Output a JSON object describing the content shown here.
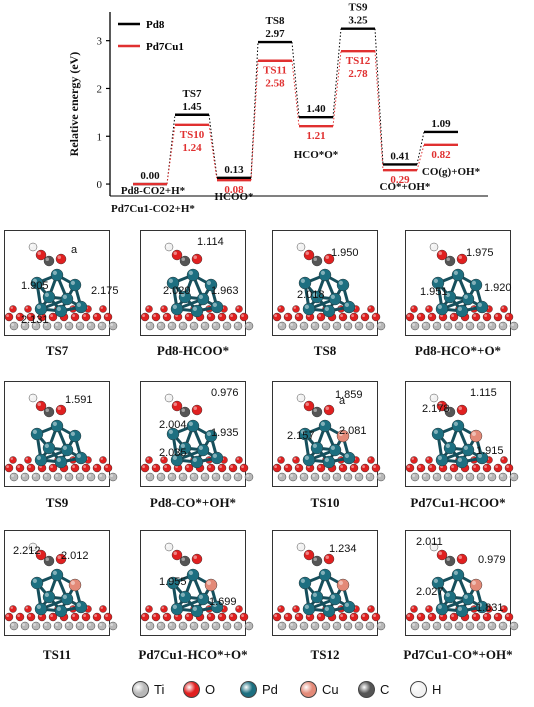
{
  "chart_data": {
    "type": "line",
    "ylabel": "Relative energy (eV)",
    "ylim": [
      -0.25,
      3.6
    ],
    "yticks": [
      0,
      1,
      2,
      3
    ],
    "series": [
      {
        "name": "Pd8",
        "color": "#000000",
        "values": [
          0.0,
          1.45,
          0.13,
          2.97,
          1.4,
          3.25,
          0.41,
          1.09
        ],
        "labels": [
          "0.00",
          "1.45",
          "0.13",
          "2.97",
          "1.40",
          "3.25",
          "0.41",
          "1.09"
        ]
      },
      {
        "name": "Pd7Cu1",
        "color": "#e03030",
        "values": [
          0.0,
          1.24,
          0.08,
          2.58,
          1.21,
          2.78,
          0.29,
          0.82
        ],
        "labels": [
          "",
          "1.24",
          "0.08",
          "2.58",
          "1.21",
          "2.78",
          "0.29",
          "0.82"
        ]
      }
    ],
    "ts_labels": [
      {
        "index": 1,
        "black": "TS7",
        "red": "TS10"
      },
      {
        "index": 3,
        "black": "TS8",
        "red": "TS11"
      },
      {
        "index": 5,
        "black": "TS9",
        "red": "TS12"
      }
    ],
    "state_labels": [
      {
        "index": 0,
        "lines": [
          "Pd8-CO2+H*",
          "Pd7Cu1-CO2+H*"
        ]
      },
      {
        "index": 2,
        "lines": [
          "HCOO*"
        ]
      },
      {
        "index": 4,
        "lines": [
          "HCO*O*"
        ]
      },
      {
        "index": 6,
        "lines": [
          "CO*+OH*"
        ]
      },
      {
        "index": 7,
        "lines": [
          "CO(g)+OH*"
        ]
      }
    ]
  },
  "panels": [
    {
      "caption": "TS7",
      "distances": [
        "1.905",
        "2.131",
        "2.175"
      ],
      "extra": "a"
    },
    {
      "caption": "Pd8-HCOO*",
      "distances": [
        "1.114",
        "2.020",
        "1.963"
      ]
    },
    {
      "caption": "TS8",
      "distances": [
        "1.950",
        "2.018"
      ]
    },
    {
      "caption": "Pd8-HCO*+O*",
      "distances": [
        "1.975",
        "1.951",
        "1.920"
      ]
    },
    {
      "caption": "TS9",
      "distances": [
        "1.591"
      ]
    },
    {
      "caption": "Pd8-CO*+OH*",
      "distances": [
        "0.976",
        "2.004",
        "1.935",
        "2.035"
      ]
    },
    {
      "caption": "TS10",
      "distances": [
        "1.859",
        "2.157",
        "2.081"
      ],
      "extra": "a"
    },
    {
      "caption": "Pd7Cu1-HCOO*",
      "distances": [
        "1.115",
        "2.178",
        "1.915"
      ]
    },
    {
      "caption": "TS11",
      "distances": [
        "2.212",
        "2.012"
      ]
    },
    {
      "caption": "Pd7Cu1-HCO*+O*",
      "distances": [
        "1.955",
        "1.699"
      ]
    },
    {
      "caption": "TS12",
      "distances": [
        "1.234"
      ]
    },
    {
      "caption": "Pd7Cu1-CO*+OH*",
      "distances": [
        "2.011",
        "0.979",
        "2.027",
        "1.831"
      ]
    }
  ],
  "legend": [
    {
      "symbol": "Ti",
      "color": "#b8b8b8",
      "icon": "ti-atom-icon"
    },
    {
      "symbol": "O",
      "color": "#e02020",
      "icon": "o-atom-icon"
    },
    {
      "symbol": "Pd",
      "color": "#1d6f80",
      "icon": "pd-atom-icon"
    },
    {
      "symbol": "Cu",
      "color": "#e38a78",
      "icon": "cu-atom-icon"
    },
    {
      "symbol": "C",
      "color": "#555555",
      "icon": "c-atom-icon"
    },
    {
      "symbol": "H",
      "color": "#f2f2f2",
      "icon": "h-atom-icon"
    }
  ]
}
